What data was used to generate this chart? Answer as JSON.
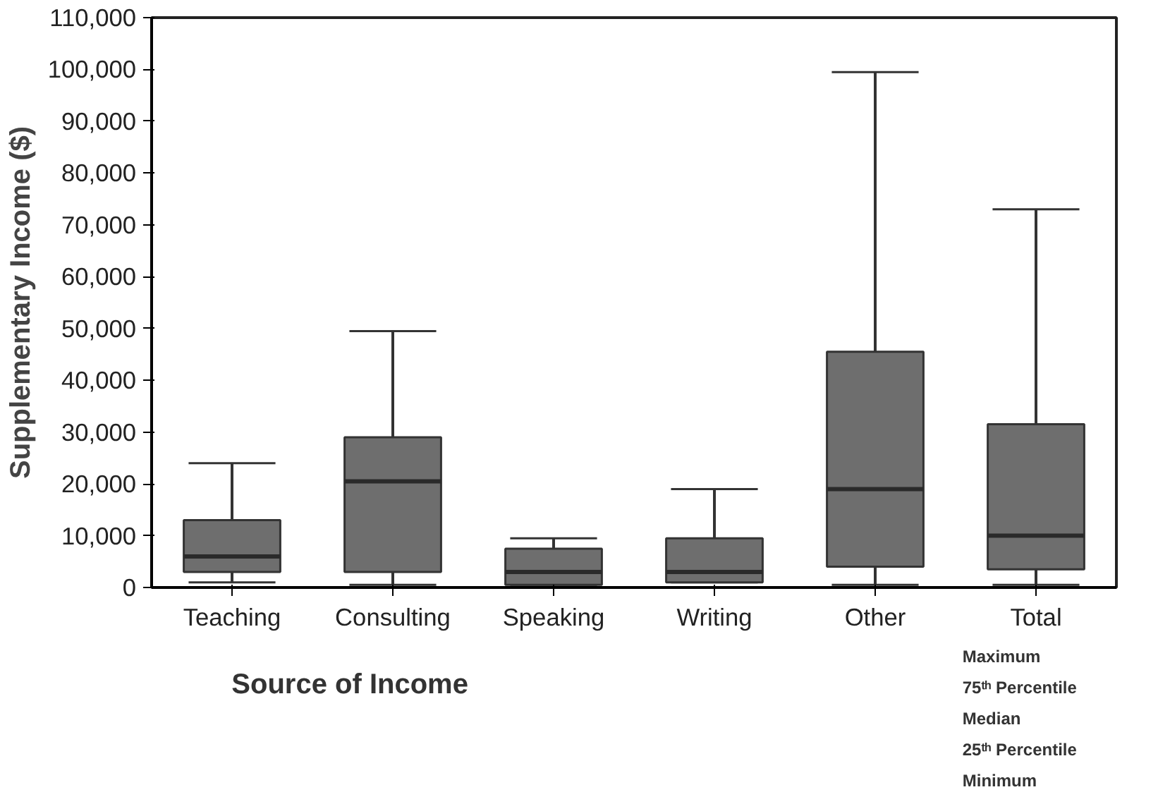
{
  "chart_data": {
    "type": "box",
    "ylabel": "Supplementary Income ($)",
    "xlabel": "Source of Income",
    "color": "#6e6e6e",
    "categories": [
      "Teaching",
      "Consulting",
      "Speaking",
      "Writing",
      "Other",
      "Total"
    ],
    "boxes": [
      {
        "low": 1000,
        "q1": 3000,
        "median": 6000,
        "q3": 13000,
        "high": 24000
      },
      {
        "low": 500,
        "q1": 3000,
        "median": 20500,
        "q3": 29000,
        "high": 49500
      },
      {
        "low": 500,
        "q1": 500,
        "median": 3000,
        "q3": 7500,
        "high": 9500
      },
      {
        "low": 1000,
        "q1": 1000,
        "median": 3000,
        "q3": 9500,
        "high": 19000
      },
      {
        "low": 500,
        "q1": 4000,
        "median": 19000,
        "q3": 45500,
        "high": 99500
      },
      {
        "low": 500,
        "q1": 3500,
        "median": 10000,
        "q3": 31500,
        "high": 73000
      }
    ],
    "ylim": [
      0,
      110000
    ],
    "yticks": [
      0,
      {
        "value": 10000,
        "label": "10,000"
      },
      {
        "value": 20000,
        "label": "20,000"
      },
      {
        "value": 30000,
        "label": "30,000"
      },
      {
        "value": 40000,
        "label": "40,000"
      },
      {
        "value": 50000,
        "label": "50,000"
      },
      {
        "value": 60000,
        "label": "60,000"
      },
      {
        "value": 70000,
        "label": "70,000"
      },
      {
        "value": 80000,
        "label": "80,000"
      },
      {
        "value": 90000,
        "label": "90,000"
      },
      {
        "value": 100000,
        "label": "100,000"
      },
      {
        "value": 110000,
        "label": "110,000"
      }
    ],
    "grid": false,
    "annotations": [
      "Maximum",
      "75ᵗʰ Percentile",
      "Median",
      "25ᵗʰ Percentile",
      "Minimum"
    ]
  }
}
